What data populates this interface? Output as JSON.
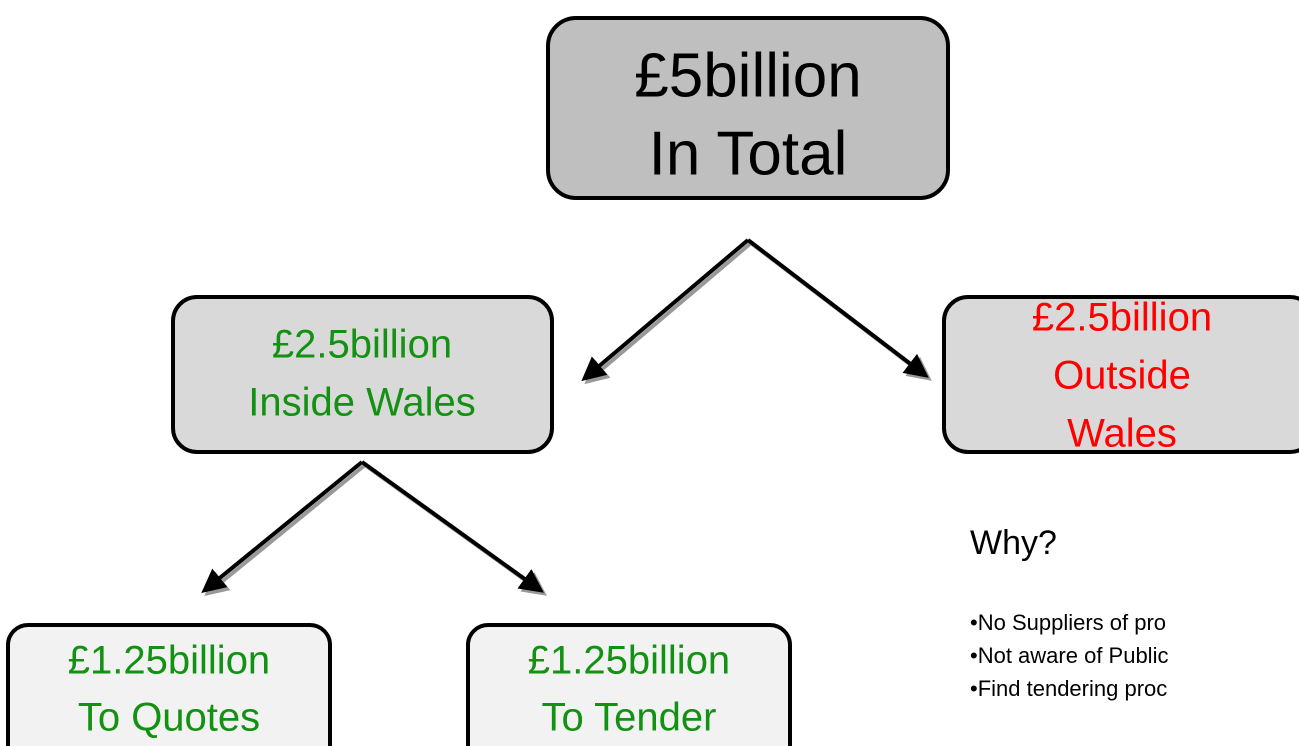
{
  "nodes": [
    {
      "lines": [
        "£5billion",
        "In Total"
      ]
    },
    {
      "lines": [
        "£2.5billion",
        "Inside Wales"
      ]
    },
    {
      "lines": [
        "£2.5billion",
        "Outside",
        "Wales"
      ]
    },
    {
      "lines": [
        "£1.25billion",
        "To Quotes"
      ]
    },
    {
      "lines": [
        "£1.25billion",
        "To Tender"
      ]
    }
  ],
  "why": {
    "heading": "Why?",
    "bullets": [
      "•No Suppliers of pro",
      "•Not aware of Public",
      "•Find tendering proc"
    ]
  }
}
